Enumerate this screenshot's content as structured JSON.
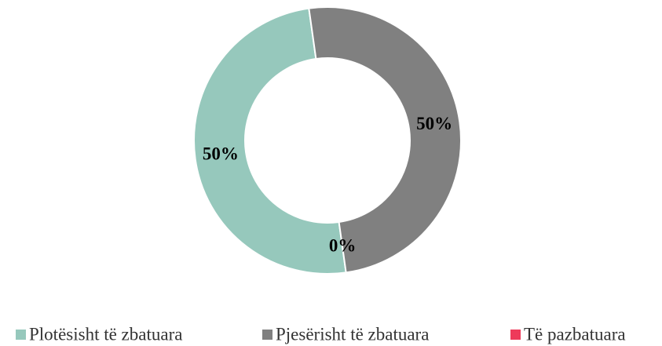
{
  "chart_data": {
    "type": "donut",
    "categories": [
      "Plotësisht të zbatuara",
      "Pjesërisht të zbatuara",
      "Të pazbatuara"
    ],
    "values": [
      50,
      50,
      0
    ],
    "value_labels": [
      "50%",
      "50%",
      "0%"
    ],
    "colors": [
      "#96c8bc",
      "#808080",
      "#ee3a5a"
    ],
    "legend": "bottom"
  }
}
